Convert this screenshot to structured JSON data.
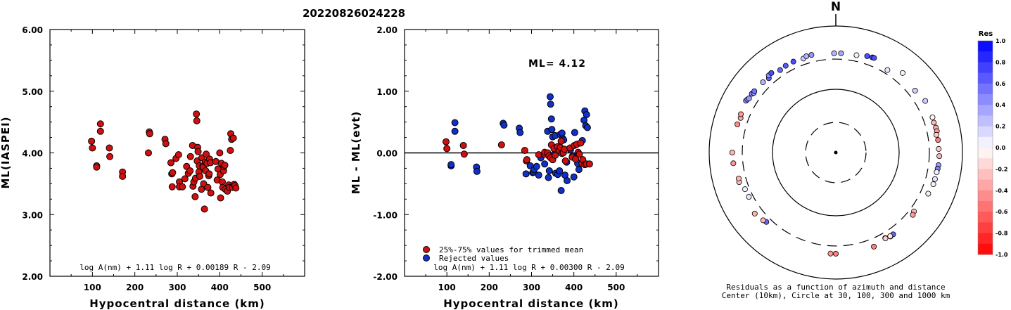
{
  "title": "20220826024228",
  "colors": {
    "red_point": "#d01010",
    "blue_point": "#1030c8",
    "point_edge": "#000000",
    "res_strong_blue": "#0000ff",
    "res_white": "#ffffff",
    "res_strong_red": "#ff0000"
  },
  "chart_data": [
    {
      "type": "scatter",
      "xlabel": "Hypocentral distance (km)",
      "ylabel": "ML(IASPEI)",
      "xlim": [
        0,
        600
      ],
      "ylim": [
        2.0,
        6.0
      ],
      "x_ticks": [
        "100",
        "200",
        "300",
        "400",
        "500"
      ],
      "y_ticks": [
        "2.00",
        "3.00",
        "4.00",
        "5.00",
        "6.00"
      ],
      "formula": "log A(nm) + 1.11 log R + 0.00189 R - 2.09",
      "series": [
        {
          "color": "red",
          "points": [
            [
              98,
              4.19
            ],
            [
              100,
              4.08
            ],
            [
              110,
              3.79
            ],
            [
              110,
              3.77
            ],
            [
              119,
              4.47
            ],
            [
              119,
              4.35
            ],
            [
              140,
              4.08
            ],
            [
              141,
              3.94
            ],
            [
              171,
              3.69
            ],
            [
              171,
              3.62
            ],
            [
              232,
              4.0
            ],
            [
              234,
              4.34
            ],
            [
              235,
              4.31
            ],
            [
              271,
              4.22
            ],
            [
              273,
              4.15
            ],
            [
              285,
              3.84
            ],
            [
              287,
              3.66
            ],
            [
              288,
              3.45
            ],
            [
              289,
              3.68
            ],
            [
              297,
              3.91
            ],
            [
              303,
              3.97
            ],
            [
              305,
              3.53
            ],
            [
              305,
              3.45
            ],
            [
              312,
              3.45
            ],
            [
              318,
              3.58
            ],
            [
              322,
              3.78
            ],
            [
              326,
              3.67
            ],
            [
              330,
              3.71
            ],
            [
              331,
              3.94
            ],
            [
              336,
              4.12
            ],
            [
              337,
              3.46
            ],
            [
              339,
              3.53
            ],
            [
              342,
              3.29
            ],
            [
              343,
              3.59
            ],
            [
              345,
              4.63
            ],
            [
              346,
              4.52
            ],
            [
              347,
              3.87
            ],
            [
              348,
              4.09
            ],
            [
              349,
              4.02
            ],
            [
              351,
              3.69
            ],
            [
              352,
              3.79
            ],
            [
              353,
              3.62
            ],
            [
              357,
              3.41
            ],
            [
              358,
              3.92
            ],
            [
              360,
              3.79
            ],
            [
              361,
              3.77
            ],
            [
              362,
              3.5
            ],
            [
              364,
              3.09
            ],
            [
              366,
              3.85
            ],
            [
              367,
              3.71
            ],
            [
              368,
              3.98
            ],
            [
              370,
              3.83
            ],
            [
              372,
              3.44
            ],
            [
              374,
              3.63
            ],
            [
              375,
              3.66
            ],
            [
              376,
              3.9
            ],
            [
              378,
              3.84
            ],
            [
              379,
              3.35
            ],
            [
              391,
              3.86
            ],
            [
              394,
              3.56
            ],
            [
              396,
              3.74
            ],
            [
              400,
              4.0
            ],
            [
              401,
              3.65
            ],
            [
              402,
              3.27
            ],
            [
              404,
              3.83
            ],
            [
              406,
              3.53
            ],
            [
              407,
              3.44
            ],
            [
              409,
              3.71
            ],
            [
              410,
              3.78
            ],
            [
              412,
              3.8
            ],
            [
              413,
              3.41
            ],
            [
              418,
              3.38
            ],
            [
              421,
              3.48
            ],
            [
              423,
              3.44
            ],
            [
              425,
              4.04
            ],
            [
              426,
              4.31
            ],
            [
              428,
              4.22
            ],
            [
              430,
              3.44
            ],
            [
              432,
              4.24
            ],
            [
              434,
              3.49
            ],
            [
              436,
              3.47
            ],
            [
              438,
              3.43
            ]
          ]
        }
      ]
    },
    {
      "type": "scatter",
      "xlabel": "Hypocentral distance (km)",
      "ylabel": "ML - ML(evt)",
      "xlim": [
        0,
        600
      ],
      "ylim": [
        -2.0,
        2.0
      ],
      "x_ticks": [
        "100",
        "200",
        "300",
        "400",
        "500"
      ],
      "y_ticks": [
        "-2.00",
        "-1.00",
        "0.00",
        "1.00",
        "2.00"
      ],
      "annotation": "ML= 4.12",
      "formula": "log A(nm) + 1.11 log R + 0.00300 R - 2.09",
      "legend": [
        "25%-75% values for trimmed mean",
        "Rejected values"
      ],
      "legend_position": "bottom-left",
      "series": [
        {
          "name": "25%-75% values for trimmed mean",
          "color": "red",
          "points": [
            [
              98,
              0.18
            ],
            [
              100,
              0.07
            ],
            [
              139,
              0.12
            ],
            [
              141,
              -0.02
            ],
            [
              229,
              0.13
            ],
            [
              284,
              0.04
            ],
            [
              288,
              -0.13
            ],
            [
              289,
              -0.11
            ],
            [
              317,
              -0.03
            ],
            [
              330,
              -0.02
            ],
            [
              331,
              0.01
            ],
            [
              338,
              0.0
            ],
            [
              341,
              -0.05
            ],
            [
              345,
              -0.08
            ],
            [
              347,
              0.13
            ],
            [
              350,
              -0.11
            ],
            [
              353,
              0.07
            ],
            [
              356,
              -0.04
            ],
            [
              361,
              0.1
            ],
            [
              365,
              0.04
            ],
            [
              368,
              0.09
            ],
            [
              370,
              0.19
            ],
            [
              372,
              -0.01
            ],
            [
              375,
              0.0
            ],
            [
              378,
              0.06
            ],
            [
              380,
              -0.13
            ],
            [
              391,
              0.08
            ],
            [
              396,
              -0.07
            ],
            [
              401,
              0.12
            ],
            [
              404,
              -0.1
            ],
            [
              407,
              0.14
            ],
            [
              410,
              0.01
            ],
            [
              413,
              -0.02
            ],
            [
              416,
              0.16
            ],
            [
              419,
              -0.17
            ],
            [
              421,
              -0.11
            ],
            [
              426,
              -0.19
            ],
            [
              430,
              -0.18
            ],
            [
              437,
              -0.18
            ]
          ]
        },
        {
          "name": "Rejected values",
          "color": "blue",
          "points": [
            [
              110,
              -0.21
            ],
            [
              110,
              -0.19
            ],
            [
              119,
              0.49
            ],
            [
              119,
              0.35
            ],
            [
              170,
              -0.23
            ],
            [
              171,
              -0.3
            ],
            [
              233,
              0.48
            ],
            [
              235,
              0.45
            ],
            [
              271,
              0.4
            ],
            [
              273,
              0.33
            ],
            [
              287,
              -0.34
            ],
            [
              297,
              -0.21
            ],
            [
              303,
              -0.32
            ],
            [
              305,
              -0.31
            ],
            [
              306,
              -0.27
            ],
            [
              312,
              -0.22
            ],
            [
              317,
              -0.36
            ],
            [
              322,
              -0.08
            ],
            [
              331,
              -0.18
            ],
            [
              338,
              0.35
            ],
            [
              340,
              -0.4
            ],
            [
              342,
              -0.29
            ],
            [
              344,
              0.91
            ],
            [
              345,
              0.79
            ],
            [
              347,
              0.55
            ],
            [
              348,
              0.38
            ],
            [
              350,
              0.26
            ],
            [
              352,
              -0.03
            ],
            [
              356,
              0.28
            ],
            [
              357,
              -0.33
            ],
            [
              361,
              0.05
            ],
            [
              362,
              -0.35
            ],
            [
              366,
              -0.29
            ],
            [
              368,
              0.3
            ],
            [
              370,
              -0.61
            ],
            [
              372,
              0.32
            ],
            [
              374,
              0.23
            ],
            [
              376,
              0.21
            ],
            [
              379,
              -0.36
            ],
            [
              383,
              -0.15
            ],
            [
              384,
              -0.45
            ],
            [
              392,
              0.05
            ],
            [
              397,
              -0.05
            ],
            [
              400,
              -0.39
            ],
            [
              402,
              0.33
            ],
            [
              409,
              -0.17
            ],
            [
              412,
              -0.27
            ],
            [
              420,
              0.2
            ],
            [
              424,
              0.53
            ],
            [
              426,
              0.68
            ],
            [
              428,
              0.44
            ],
            [
              430,
              0.62
            ],
            [
              432,
              0.41
            ]
          ]
        }
      ]
    },
    {
      "type": "scatter",
      "subtype": "polar",
      "north_label": "N",
      "caption_line1": "Residuals as a function of azimuth and distance",
      "caption_line2": "Center (10km), Circle at 30, 100, 300 and 1000 km",
      "rings_km": [
        30,
        100,
        300,
        1000
      ],
      "rings_style": [
        "dashed",
        "solid",
        "dashed",
        "solid"
      ],
      "center_km": 10,
      "colorbar_title": "Res",
      "colorbar_ticks": [
        "1.0",
        "0.8",
        "0.6",
        "0.4",
        "0.2",
        "0.0",
        "-0.2",
        "-0.4",
        "-0.6",
        "-0.8",
        "-1.0"
      ],
      "colorbar_range": [
        -1.0,
        1.0
      ],
      "stations": [
        [
          359,
          371,
          0.3
        ],
        [
          3,
          372,
          0.35
        ],
        [
          12,
          374,
          0.05
        ],
        [
          18,
          400,
          0.7
        ],
        [
          21,
          408,
          0.75
        ],
        [
          22,
          410,
          0.7
        ],
        [
          32,
          345,
          0.1
        ],
        [
          40,
          438,
          0.05
        ],
        [
          52,
          388,
          0.2
        ],
        [
          60,
          428,
          0.2
        ],
        [
          70,
          422,
          -0.05
        ],
        [
          73,
          415,
          -0.3
        ],
        [
          76,
          425,
          -0.35
        ],
        [
          78,
          428,
          -0.4
        ],
        [
          80,
          410,
          -0.2
        ],
        [
          83,
          423,
          -0.5
        ],
        [
          88,
          422,
          -0.2
        ],
        [
          92,
          432,
          -0.3
        ],
        [
          97,
          430,
          0.4
        ],
        [
          99,
          425,
          0.5
        ],
        [
          101,
          420,
          0.05
        ],
        [
          105,
          418,
          0.1
        ],
        [
          108,
          416,
          0.05
        ],
        [
          114,
          396,
          0.05
        ],
        [
          127,
          351,
          -0.3
        ],
        [
          129,
          367,
          -0.4
        ],
        [
          145,
          379,
          0.6
        ],
        [
          147,
          382,
          0.1
        ],
        [
          147,
          377,
          -0.1
        ],
        [
          150,
          363,
          -0.3
        ],
        [
          150,
          369,
          -0.2
        ],
        [
          158,
          402,
          -0.5
        ],
        [
          180,
          397,
          -0.5
        ],
        [
          183,
          397,
          -0.4
        ],
        [
          225,
          356,
          0.6
        ],
        [
          227,
          371,
          -0.3
        ],
        [
          233,
          401,
          -0.3
        ],
        [
          243,
          348,
          0.1
        ],
        [
          248,
          352,
          0.05
        ],
        [
          253,
          395,
          -0.25
        ],
        [
          255,
          387,
          -0.3
        ],
        [
          264,
          424,
          -0.4
        ],
        [
          270,
          432,
          -0.3
        ],
        [
          286,
          414,
          -0.45
        ],
        [
          290,
          398,
          -0.35
        ],
        [
          292,
          414,
          -0.4
        ],
        [
          300,
          435,
          0.4
        ],
        [
          301,
          426,
          0.45
        ],
        [
          302,
          413,
          0.4
        ],
        [
          305,
          417,
          0.45
        ],
        [
          306,
          400,
          0.4
        ],
        [
          307,
          409,
          0.55
        ],
        [
          314,
          398,
          0.3
        ],
        [
          318,
          381,
          0.6
        ],
        [
          319,
          412,
          0.45
        ],
        [
          321,
          415,
          0.7
        ],
        [
          326,
          374,
          0.6
        ],
        [
          330,
          383,
          0.65
        ],
        [
          335,
          385,
          0.7
        ],
        [
          341,
          372,
          0.2
        ],
        [
          343,
          390,
          0.3
        ],
        [
          346,
          389,
          0.4
        ]
      ]
    }
  ]
}
